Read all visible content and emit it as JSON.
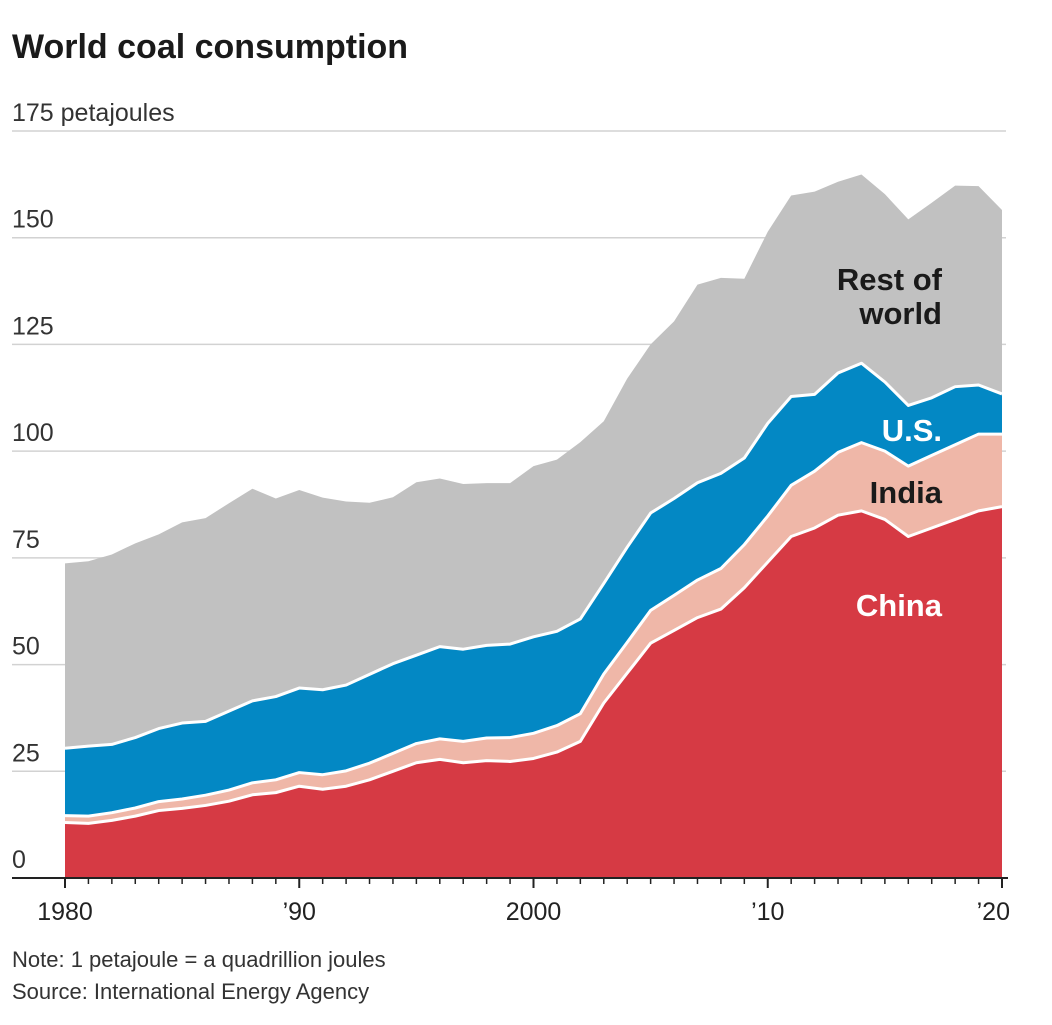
{
  "chart_data": {
    "type": "area",
    "stacked": true,
    "title": "World coal consumption",
    "ylabel": "175 petajoules",
    "ylim": [
      0,
      175
    ],
    "yticks": [
      0,
      25,
      50,
      75,
      100,
      125,
      150,
      175
    ],
    "ytick_labels": [
      "0",
      "25",
      "50",
      "75",
      "100",
      "125",
      "150",
      "175 petajoules"
    ],
    "xlim": [
      1980,
      2020
    ],
    "xticks": [
      1980,
      1990,
      2000,
      2010,
      2020
    ],
    "xtick_labels": [
      "1980",
      "’90",
      "2000",
      "’10",
      "’20"
    ],
    "x": [
      1980,
      1981,
      1982,
      1983,
      1984,
      1985,
      1986,
      1987,
      1988,
      1989,
      1990,
      1991,
      1992,
      1993,
      1994,
      1995,
      1996,
      1997,
      1998,
      1999,
      2000,
      2001,
      2002,
      2003,
      2004,
      2005,
      2006,
      2007,
      2008,
      2009,
      2010,
      2011,
      2012,
      2013,
      2014,
      2015,
      2016,
      2017,
      2018,
      2019,
      2020
    ],
    "series": [
      {
        "name": "China",
        "label": "China",
        "color": "#d63a44",
        "label_color": "#ffffff",
        "values": [
          13,
          12.8,
          13.5,
          14.5,
          15.8,
          16.3,
          17,
          18,
          19.5,
          20,
          21.5,
          20.8,
          21.5,
          23,
          25,
          27,
          27.8,
          27,
          27.5,
          27.3,
          28,
          29.5,
          32,
          41,
          48,
          55,
          58,
          61,
          63,
          68,
          74,
          80,
          82,
          85,
          86,
          84,
          80,
          82,
          84,
          86,
          87
        ]
      },
      {
        "name": "India",
        "label": "India",
        "color": "#efb7a8",
        "label_color": "#1a1a1a",
        "values": [
          1.6,
          1.7,
          1.8,
          1.9,
          2.1,
          2.2,
          2.4,
          2.6,
          2.8,
          3,
          3.2,
          3.4,
          3.6,
          3.9,
          4.2,
          4.5,
          4.8,
          5,
          5.3,
          5.6,
          5.9,
          6.2,
          6.5,
          6.8,
          7.2,
          7.7,
          8.2,
          8.8,
          9.5,
          10.1,
          10.8,
          12,
          13.3,
          14.7,
          16,
          16,
          16.5,
          17,
          17.5,
          18,
          17
        ]
      },
      {
        "name": "U.S.",
        "label": "U.S.",
        "color": "#0388c4",
        "label_color": "#ffffff",
        "values": [
          15.8,
          16.4,
          16,
          16.5,
          17.1,
          17.8,
          17.3,
          18.5,
          19.2,
          19.5,
          19.8,
          19.9,
          20.1,
          20.8,
          21,
          20.7,
          21.6,
          21.6,
          21.7,
          21.9,
          22.6,
          22.1,
          22.2,
          21.2,
          22.3,
          22.8,
          22.7,
          22.8,
          22.3,
          20.3,
          21.7,
          20.8,
          18,
          18.6,
          18.6,
          16.2,
          14.2,
          13.5,
          13.6,
          11.5,
          9.4
        ]
      },
      {
        "name": "Rest of world",
        "label": "Rest of world",
        "color": "#c1c1c1",
        "label_color": "#1a1a1a",
        "values": [
          43.3,
          43.3,
          44.5,
          45.5,
          45.5,
          47,
          47.6,
          48.7,
          49.7,
          46.4,
          46.4,
          45,
          43,
          40.2,
          39,
          40.5,
          39.4,
          38.7,
          38,
          37.7,
          40,
          40.2,
          41.4,
          38,
          39.5,
          39.5,
          41.5,
          46.4,
          45.8,
          42,
          44.9,
          47.1,
          47.5,
          44.8,
          44.2,
          44,
          43.6,
          45.7,
          47.1,
          46.6,
          43.1
        ]
      }
    ],
    "annotations": [
      "Rest of world",
      "U.S.",
      "India",
      "China"
    ],
    "note": "Note: 1 petajoule = a quadrillion joules",
    "source": "Source: International Energy Agency"
  }
}
